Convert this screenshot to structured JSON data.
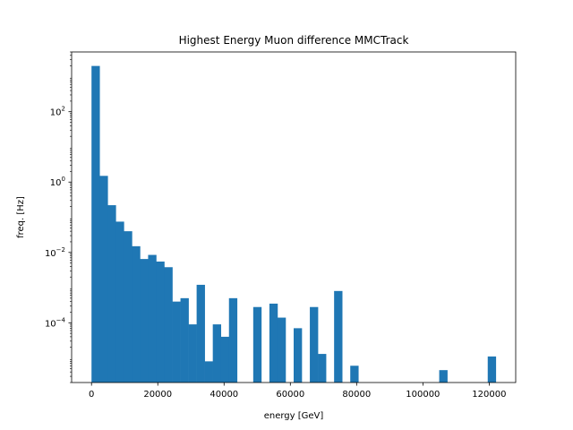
{
  "chart_data": {
    "type": "bar",
    "title": "Highest Energy Muon difference MMCTrack",
    "xlabel": "energy [GeV]",
    "ylabel": "freq. [Hz]",
    "xlim": [
      -6000,
      128000
    ],
    "ylim": [
      2e-06,
      5000
    ],
    "yscale": "log",
    "grid": false,
    "bar_color": "#1f77b4",
    "x_ticks": [
      {
        "value": 0,
        "label": "0"
      },
      {
        "value": 20000,
        "label": "20000"
      },
      {
        "value": 40000,
        "label": "40000"
      },
      {
        "value": 60000,
        "label": "60000"
      },
      {
        "value": 80000,
        "label": "80000"
      },
      {
        "value": 100000,
        "label": "100000"
      },
      {
        "value": 120000,
        "label": "120000"
      }
    ],
    "y_ticks": [
      {
        "value": 0.0001,
        "base": "10",
        "exp": "−4"
      },
      {
        "value": 0.01,
        "base": "10",
        "exp": "−2"
      },
      {
        "value": 1,
        "base": "10",
        "exp": "0"
      },
      {
        "value": 100,
        "base": "10",
        "exp": "2"
      }
    ],
    "bin_start": 0,
    "bin_width": 2440,
    "values": [
      2000,
      1.5,
      0.22,
      0.075,
      0.04,
      0.015,
      0.0065,
      0.0085,
      0.0055,
      0.0038,
      0.0004,
      0.0005,
      9e-05,
      0.0012,
      8e-06,
      9e-05,
      4e-05,
      0.0005,
      0,
      0,
      0.00028,
      0,
      0.00035,
      0.00014,
      0,
      7e-05,
      0,
      0.00028,
      1.3e-05,
      0,
      0.0008,
      0,
      6e-06,
      0,
      0,
      0,
      0,
      0,
      0,
      0,
      0,
      0,
      0,
      4.5e-06,
      0,
      0,
      0,
      0,
      0,
      1.1e-05
    ]
  }
}
